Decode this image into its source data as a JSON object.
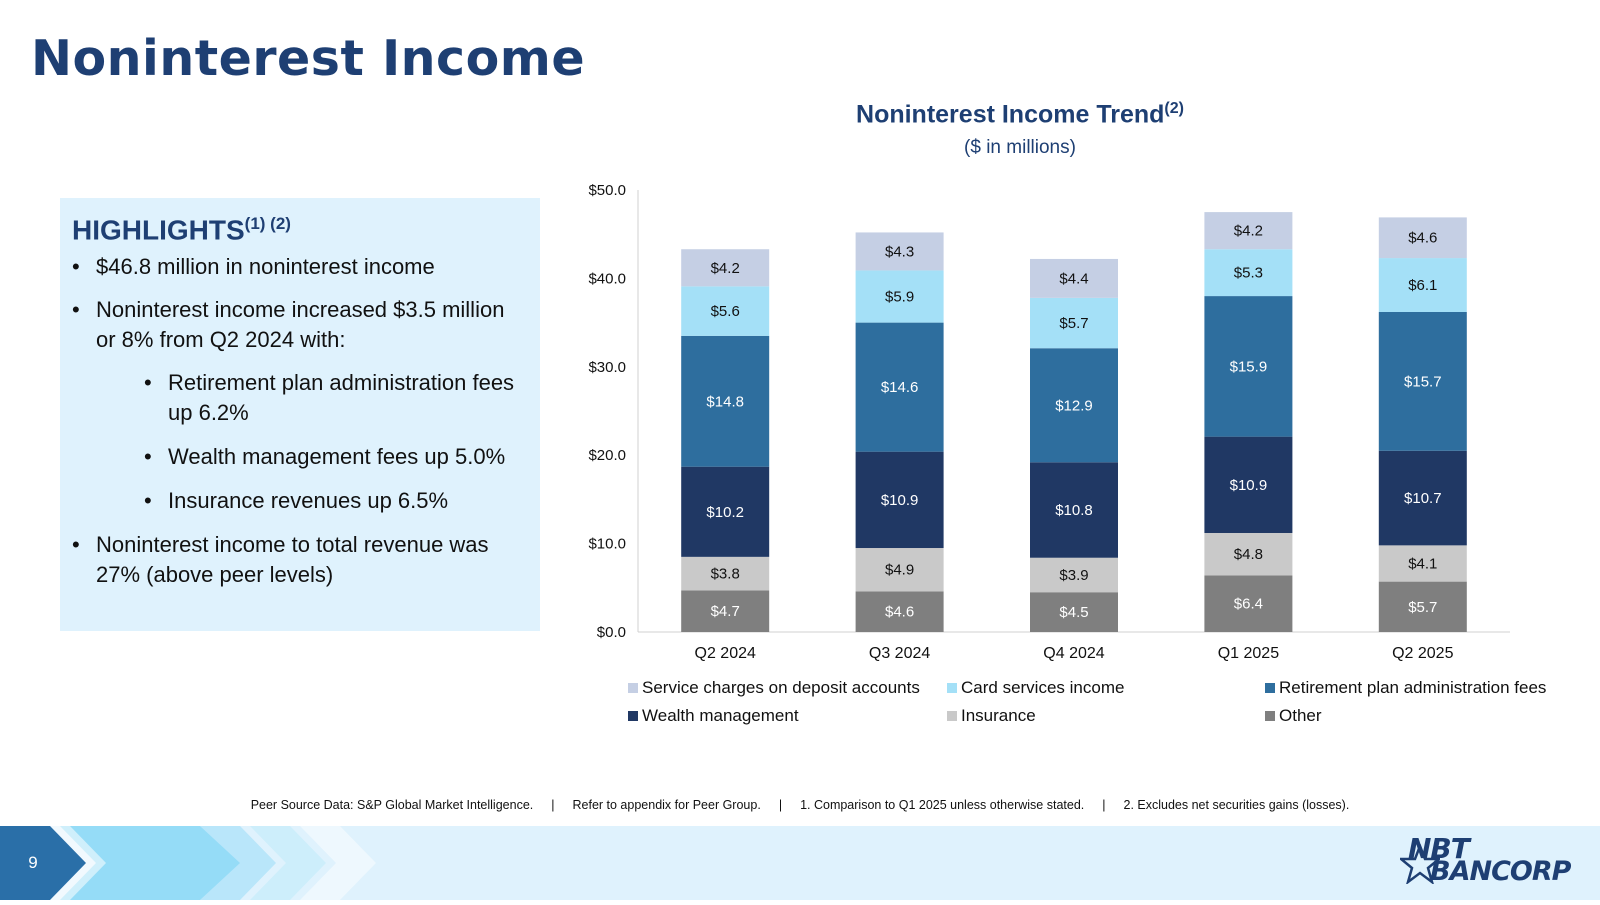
{
  "page": {
    "title": "Noninterest Income",
    "page_number": "9"
  },
  "highlights": {
    "heading": "HIGHLIGHTS",
    "heading_sup": "(1) (2)",
    "bullets": [
      "$46.8 million in noninterest income",
      "Noninterest income increased $3.5 million or 8% from Q2 2024 with:",
      "Retirement plan administration fees up 6.2%",
      "Wealth management fees up 5.0%",
      "Insurance revenues up 6.5%",
      "Noninterest income to total revenue was 27% (above peer levels)"
    ]
  },
  "footer": {
    "note1": "Peer Source Data: S&P Global Market Intelligence.",
    "note2": "Refer to appendix for Peer Group.",
    "note3": "1. Comparison to Q1 2025 unless otherwise stated.",
    "note4": "2. Excludes net securities gains (losses).",
    "separator": "|"
  },
  "logo": {
    "line1": "NBT",
    "line2": "BANCORP"
  },
  "colors": {
    "title": "#1e3f73",
    "highlight_bg": "#dff2fd"
  },
  "chart_data": {
    "type": "bar",
    "stacked": true,
    "title": "Noninterest Income Trend",
    "title_sup": "(2)",
    "subtitle": "($ in millions)",
    "categories": [
      "Q2 2024",
      "Q3 2024",
      "Q4 2024",
      "Q1 2025",
      "Q2 2025"
    ],
    "ylim": [
      0,
      50
    ],
    "yticks": [
      "$0.0",
      "$10.0",
      "$20.0",
      "$30.0",
      "$40.0",
      "$50.0"
    ],
    "grid": false,
    "legend_position": "bottom",
    "series": [
      {
        "name": "Other",
        "color": "#7f7f7f",
        "label_color": "#ffffff",
        "values": [
          4.7,
          4.6,
          4.5,
          6.4,
          5.7
        ],
        "labels": [
          "$4.7",
          "$4.6",
          "$4.5",
          "$6.4",
          "$5.7"
        ]
      },
      {
        "name": "Insurance",
        "color": "#c9c9c9",
        "label_color": "#111111",
        "values": [
          3.8,
          4.9,
          3.9,
          4.8,
          4.1
        ],
        "labels": [
          "$3.8",
          "$4.9",
          "$3.9",
          "$4.8",
          "$4.1"
        ]
      },
      {
        "name": "Wealth management",
        "color": "#203864",
        "label_color": "#ffffff",
        "values": [
          10.2,
          10.9,
          10.8,
          10.9,
          10.7
        ],
        "labels": [
          "$10.2",
          "$10.9",
          "$10.8",
          "$10.9",
          "$10.7"
        ]
      },
      {
        "name": "Retirement plan administration fees",
        "color": "#2e6e9e",
        "label_color": "#ffffff",
        "values": [
          14.8,
          14.6,
          12.9,
          15.9,
          15.7
        ],
        "labels": [
          "$14.8",
          "$14.6",
          "$12.9",
          "$15.9",
          "$15.7"
        ]
      },
      {
        "name": "Card services income",
        "color": "#a4e0f7",
        "label_color": "#111111",
        "values": [
          5.6,
          5.9,
          5.7,
          5.3,
          6.1
        ],
        "labels": [
          "$5.6",
          "$5.9",
          "$5.7",
          "$5.3",
          "$6.1"
        ]
      },
      {
        "name": "Service charges on deposit accounts",
        "color": "#c5cfe4",
        "label_color": "#111111",
        "values": [
          4.2,
          4.3,
          4.4,
          4.2,
          4.6
        ],
        "labels": [
          "$4.2",
          "$4.3",
          "$4.4",
          "$4.2",
          "$4.6"
        ]
      }
    ],
    "legend_order": [
      5,
      4,
      3,
      2,
      1,
      0
    ]
  }
}
